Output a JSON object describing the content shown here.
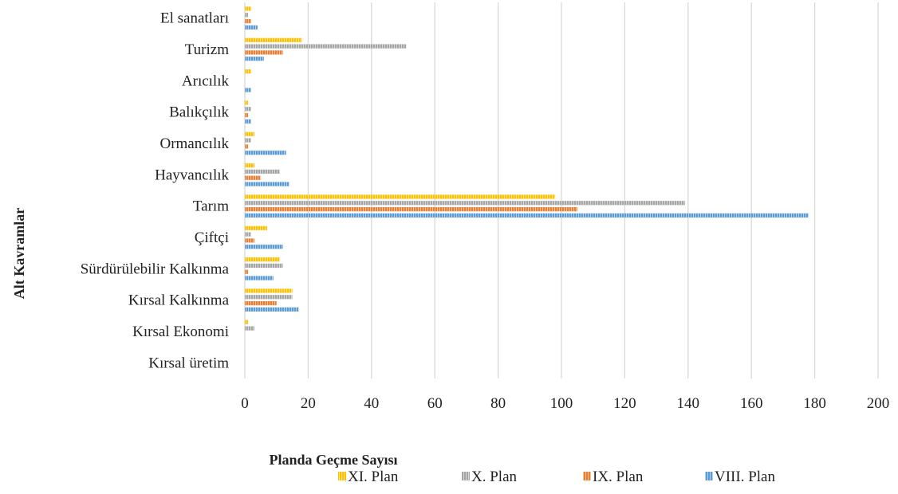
{
  "chart_data": {
    "type": "bar",
    "orientation": "horizontal",
    "xlabel": "Planda Geçme Sayısı",
    "ylabel": "Alt Kavramlar",
    "xlim": [
      0,
      200
    ],
    "xticks": [
      0,
      20,
      40,
      60,
      80,
      100,
      120,
      140,
      160,
      180,
      200
    ],
    "grid": true,
    "legend_position": "bottom",
    "categories": [
      "El sanatları",
      "Turizm",
      "Arıcılık",
      "Balıkçılık",
      "Ormancılık",
      "Hayvancılık",
      "Tarım",
      "Çiftçi",
      "Sürdürülebilir Kalkınma",
      "Kırsal Kalkınma",
      "Kırsal Ekonomi",
      "Kırsal üretim"
    ],
    "series": [
      {
        "name": "XI. Plan",
        "color": "#FFC000",
        "values": [
          2,
          18,
          2,
          1,
          3,
          3,
          98,
          7,
          11,
          15,
          1,
          0
        ]
      },
      {
        "name": "X. Plan",
        "color": "#A5A5A5",
        "values": [
          1,
          51,
          0,
          2,
          2,
          11,
          139,
          2,
          12,
          15,
          3,
          0
        ]
      },
      {
        "name": "IX. Plan",
        "color": "#ED7D31",
        "values": [
          2,
          12,
          0,
          1,
          1,
          5,
          105,
          3,
          1,
          10,
          0,
          0
        ]
      },
      {
        "name": "VIII. Plan",
        "color": "#5B9BD5",
        "values": [
          4,
          6,
          2,
          2,
          13,
          14,
          178,
          12,
          9,
          17,
          0,
          0
        ]
      }
    ]
  }
}
